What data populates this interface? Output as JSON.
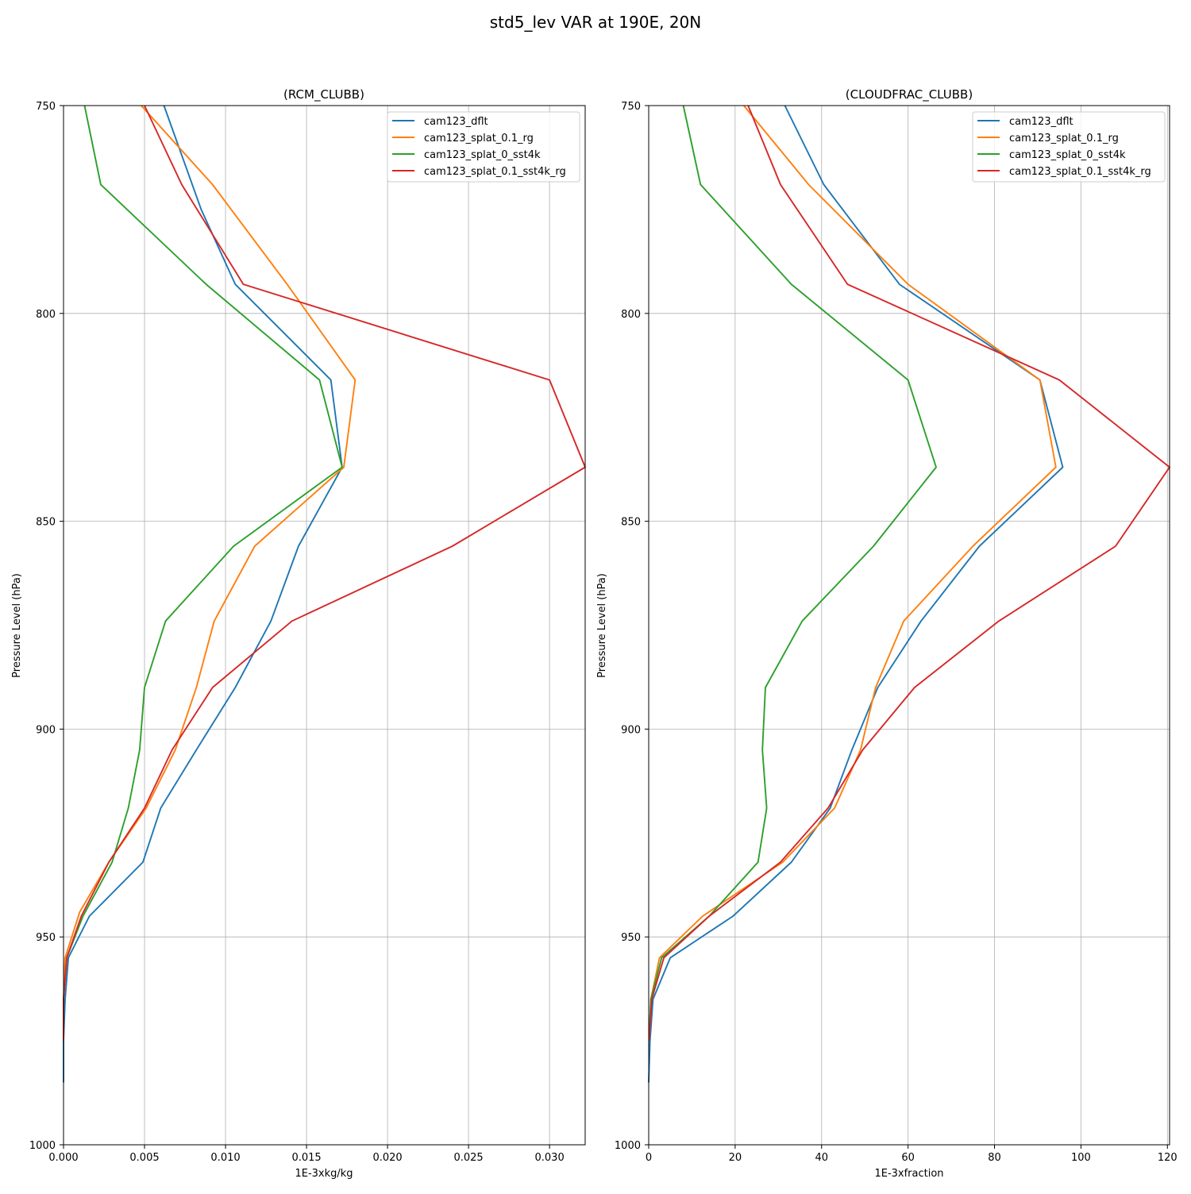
{
  "figure": {
    "suptitle": "std5_lev VAR at 190E, 20N"
  },
  "chart_data": [
    {
      "type": "line",
      "title": "(RCM_CLUBB)",
      "xlabel": "1E-3xkg/kg",
      "ylabel": "Pressure Level (hPa)",
      "xlim": [
        0.0,
        0.0322
      ],
      "ylim": [
        1000,
        750
      ],
      "y_inverted": true,
      "grid": true,
      "legend_position": "upper right",
      "xticks": [
        "0.000",
        "0.005",
        "0.010",
        "0.015",
        "0.020",
        "0.025",
        "0.030"
      ],
      "xtick_values": [
        0.0,
        0.005,
        0.01,
        0.015,
        0.02,
        0.025,
        0.03
      ],
      "yticks": [
        "750",
        "800",
        "850",
        "900",
        "950",
        "1000"
      ],
      "ytick_values": [
        750,
        800,
        850,
        900,
        950,
        1000
      ],
      "series": [
        {
          "name": "cam123_dflt",
          "color": "#1f77b4",
          "x": [
            0.0062,
            0.0085,
            0.0106,
            0.0165,
            0.0172,
            0.0145,
            0.0128,
            0.0106,
            0.0082,
            0.006,
            0.0049,
            0.0016,
            0.0003,
            0.0001,
            0.0,
            0.0
          ],
          "y": [
            750,
            775,
            793,
            816,
            837,
            856,
            874,
            890,
            905,
            919,
            932,
            945,
            955,
            965,
            975,
            985
          ]
        },
        {
          "name": "cam123_splat_0.1_rg",
          "color": "#ff7f0e",
          "x": [
            0.0048,
            0.0092,
            0.0138,
            0.018,
            0.0173,
            0.0118,
            0.0093,
            0.0082,
            0.0069,
            0.0051,
            0.0028,
            0.001,
            0.0001,
            0.0,
            0.0
          ],
          "y": [
            750,
            769,
            793,
            816,
            837,
            856,
            874,
            890,
            905,
            919,
            932,
            944,
            955,
            965,
            975
          ]
        },
        {
          "name": "cam123_splat_0_sst4k",
          "color": "#2ca02c",
          "x": [
            0.0013,
            0.0023,
            0.0088,
            0.0158,
            0.0172,
            0.0105,
            0.0063,
            0.005,
            0.0047,
            0.004,
            0.003,
            0.0012,
            0.0002,
            0.0,
            0.0
          ],
          "y": [
            750,
            769,
            793,
            816,
            837,
            856,
            874,
            890,
            905,
            919,
            932,
            945,
            955,
            965,
            975
          ]
        },
        {
          "name": "cam123_splat_0.1_sst4k_rg",
          "color": "#d62728",
          "x": [
            0.005,
            0.0073,
            0.0111,
            0.03,
            0.0322,
            0.024,
            0.0141,
            0.0092,
            0.0067,
            0.005,
            0.0028,
            0.0011,
            0.0002,
            0.0,
            0.0
          ],
          "y": [
            750,
            769,
            793,
            816,
            837,
            856,
            874,
            890,
            905,
            919,
            932,
            945,
            955,
            965,
            975
          ]
        }
      ]
    },
    {
      "type": "line",
      "title": "(CLOUDFRAC_CLUBB)",
      "xlabel": "1E-3xfraction",
      "ylabel": "Pressure Level (hPa)",
      "xlim": [
        0,
        120.5
      ],
      "ylim": [
        1000,
        750
      ],
      "y_inverted": true,
      "grid": true,
      "legend_position": "upper right",
      "xticks": [
        "0",
        "20",
        "40",
        "60",
        "80",
        "100",
        "120"
      ],
      "xtick_values": [
        0,
        20,
        40,
        60,
        80,
        100,
        120
      ],
      "yticks": [
        "750",
        "800",
        "850",
        "900",
        "950",
        "1000"
      ],
      "ytick_values": [
        750,
        800,
        850,
        900,
        950,
        1000
      ],
      "series": [
        {
          "name": "cam123_dflt",
          "color": "#1f77b4",
          "x": [
            31.5,
            40.5,
            58,
            90.5,
            95.8,
            76.5,
            63,
            53,
            47,
            42,
            33,
            19.5,
            5,
            1,
            0.3,
            0
          ],
          "y": [
            750,
            769,
            793,
            816,
            837,
            856,
            874,
            890,
            905,
            919,
            932,
            945,
            955,
            965,
            975,
            985
          ]
        },
        {
          "name": "cam123_splat_0.1_rg",
          "color": "#ff7f0e",
          "x": [
            22,
            37,
            60,
            90.5,
            94.2,
            75,
            59,
            52.5,
            49,
            43,
            31,
            12.5,
            2.5,
            0.5,
            0.1
          ],
          "y": [
            750,
            769,
            793,
            816,
            837,
            856,
            874,
            890,
            905,
            919,
            932,
            945,
            955,
            965,
            975
          ]
        },
        {
          "name": "cam123_splat_0_sst4k",
          "color": "#2ca02c",
          "x": [
            8,
            12,
            33,
            60,
            66.5,
            52,
            35.5,
            27,
            26.3,
            27.3,
            25.3,
            14,
            3,
            0.5,
            0.1
          ],
          "y": [
            750,
            769,
            793,
            816,
            837,
            856,
            874,
            890,
            905,
            919,
            932,
            945,
            955,
            965,
            975
          ]
        },
        {
          "name": "cam123_splat_0.1_sst4k_rg",
          "color": "#d62728",
          "x": [
            23,
            30.5,
            46,
            95,
            120.5,
            108,
            81,
            61.5,
            49.5,
            41.5,
            30.5,
            14,
            3.5,
            0.7,
            0.1
          ],
          "y": [
            750,
            769,
            793,
            816,
            837,
            856,
            874,
            890,
            905,
            919,
            932,
            945,
            955,
            965,
            975
          ]
        }
      ]
    }
  ]
}
